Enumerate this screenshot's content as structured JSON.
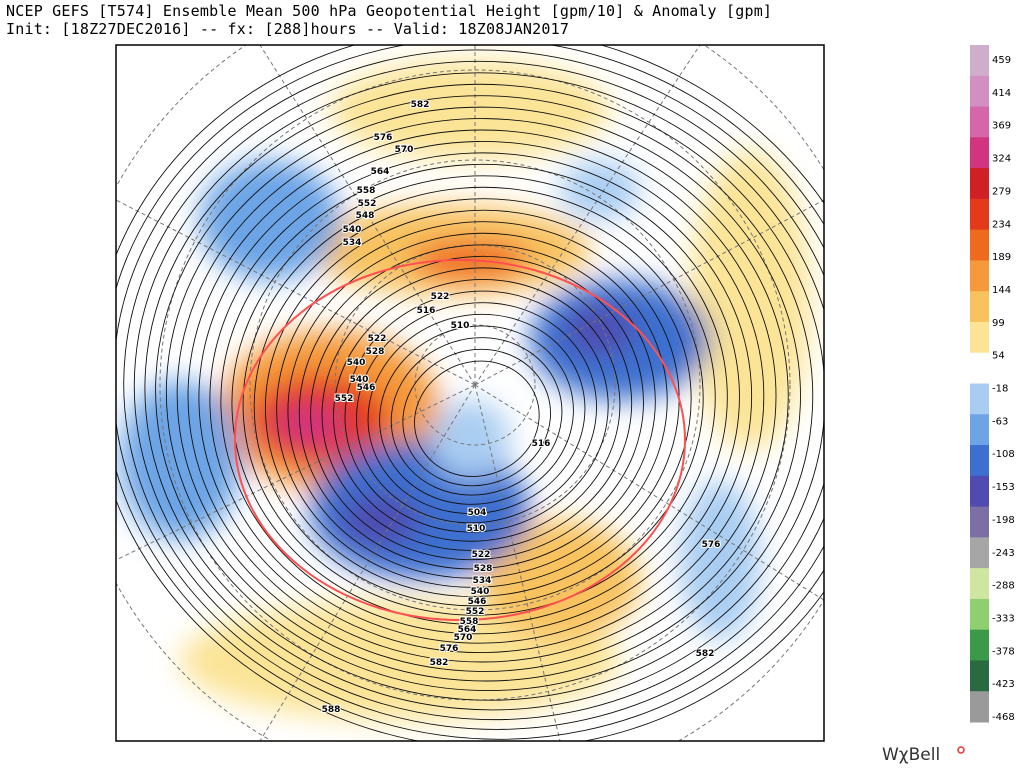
{
  "header": {
    "title": "NCEP GEFS [T574] Ensemble Mean 500 hPa Geopotential Height [gpm/10] & Anomaly [gpm]",
    "subtitle": "Init: [18Z27DEC2016] -- fx: [288]hours -- Valid: 18Z08JAN2017"
  },
  "colorbar": {
    "labels": [
      459,
      414,
      369,
      324,
      279,
      234,
      189,
      144,
      99,
      54,
      -18,
      -63,
      -108,
      -153,
      -198,
      -243,
      -288,
      -333,
      -378,
      -423,
      -468
    ],
    "colors": [
      "#cfaecb",
      "#d48fc2",
      "#d566aa",
      "#d1357f",
      "#cf2026",
      "#e43a1c",
      "#ef6a1f",
      "#f59a3a",
      "#f8c25f",
      "#fbe496",
      "#ffffff",
      "#a9cdf2",
      "#6ca4e6",
      "#3c6fcf",
      "#4f4bb0",
      "#7d6fa6",
      "#a6a6a6",
      "#cfe6a0",
      "#8fcf6f",
      "#3a9a4a",
      "#2a6a40",
      "#9a9a9a"
    ]
  },
  "contour_labels": [
    "582",
    "576",
    "570",
    "564",
    "558",
    "552",
    "548",
    "540",
    "534",
    "522",
    "516",
    "510",
    "522",
    "528",
    "540",
    "540",
    "546",
    "552",
    "516",
    "504",
    "510",
    "522",
    "528",
    "534",
    "540",
    "546",
    "552",
    "558",
    "564",
    "570",
    "576",
    "582",
    "588",
    "576",
    "582"
  ],
  "watermark": "WχBell"
}
